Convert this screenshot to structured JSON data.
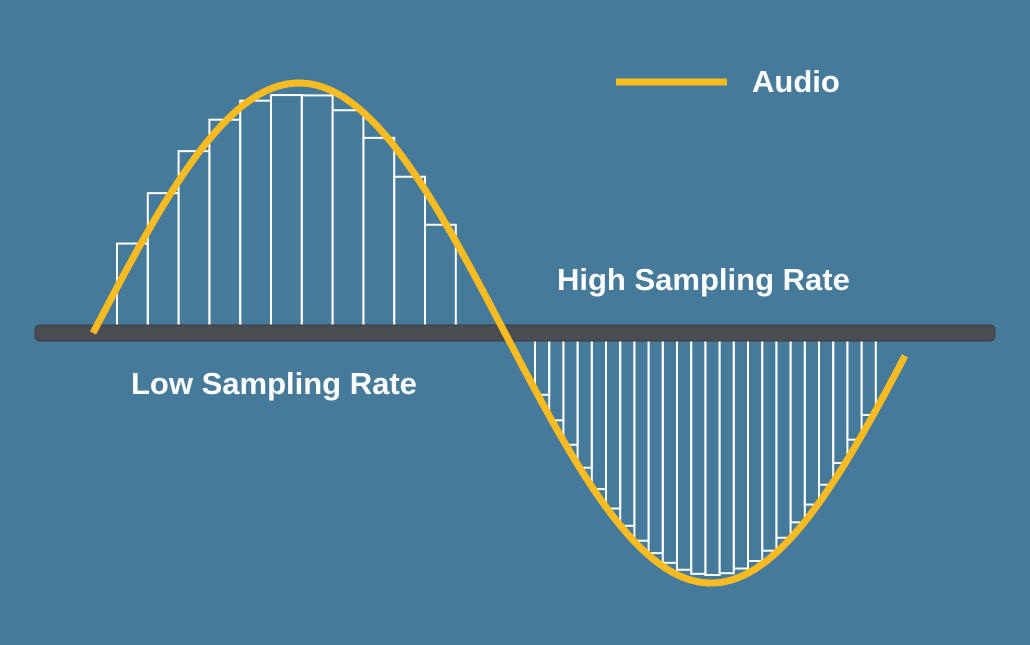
{
  "legend": {
    "label": "Audio",
    "line_color": "#fbbb21"
  },
  "labels": {
    "high_rate": "High Sampling Rate",
    "low_rate": "Low Sampling Rate"
  },
  "colors": {
    "background": "#457a9b",
    "wave": "#fbbb21",
    "baseline": "#4a4d51",
    "sample_bars": "#ffffff"
  },
  "samples": {
    "low_rate_count": 11,
    "high_rate_count": 24
  }
}
